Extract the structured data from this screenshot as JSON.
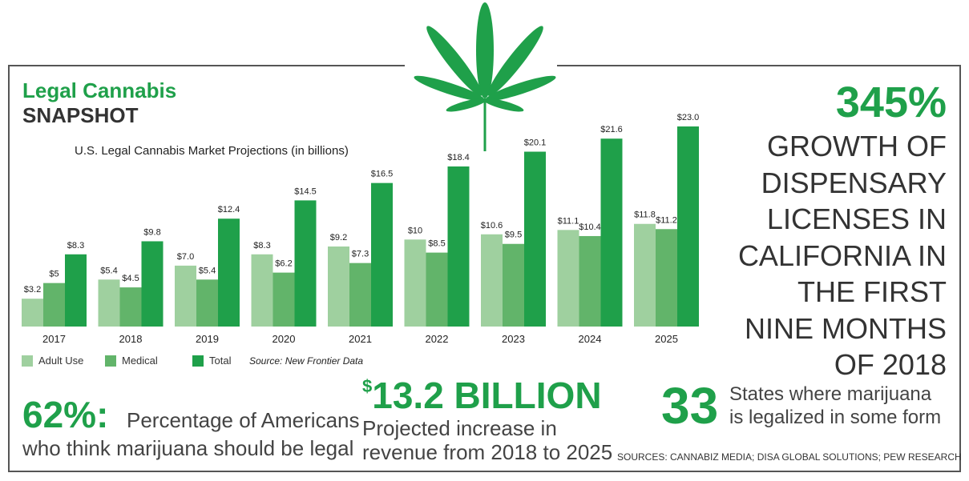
{
  "header": {
    "title_line1": "Legal Cannabis",
    "title_line2": "SNAPSHOT"
  },
  "colors": {
    "adult_use": "#9fd09f",
    "medical": "#62b46a",
    "total": "#1fa04a",
    "accent": "#1fa04a"
  },
  "icons": {
    "leaf": "cannabis-leaf-icon"
  },
  "chart_data": {
    "type": "bar",
    "title": "U.S. Legal Cannabis Market Projections (in billions)",
    "categories": [
      "2017",
      "2018",
      "2019",
      "2020",
      "2021",
      "2022",
      "2023",
      "2024",
      "2025"
    ],
    "series": [
      {
        "name": "Adult Use",
        "values": [
          3.2,
          5.4,
          7.0,
          8.3,
          9.2,
          10,
          10.6,
          11.1,
          11.8
        ],
        "labels": [
          "$3.2",
          "$5.4",
          "$7.0",
          "$8.3",
          "$9.2",
          "$10",
          "$10.6",
          "$11.1",
          "$11.8"
        ]
      },
      {
        "name": "Medical",
        "values": [
          5,
          4.5,
          5.4,
          6.2,
          7.3,
          8.5,
          9.5,
          10.4,
          11.2
        ],
        "labels": [
          "$5",
          "$4.5",
          "$5.4",
          "$6.2",
          "$7.3",
          "$8.5",
          "$9.5",
          "$10.4",
          "$11.2"
        ]
      },
      {
        "name": "Total",
        "values": [
          8.3,
          9.8,
          12.4,
          14.5,
          16.5,
          18.4,
          20.1,
          21.6,
          23.0
        ],
        "labels": [
          "$8.3",
          "$9.8",
          "$12.4",
          "$14.5",
          "$16.5",
          "$18.4",
          "$20.1",
          "$21.6",
          "$23.0"
        ]
      }
    ],
    "ylim": [
      0,
      23.0
    ],
    "legend_position": "bottom-left",
    "grid": false,
    "source_note": "Source: New Frontier Data"
  },
  "stats": {
    "growth": {
      "value": "345%",
      "text": "GROWTH OF DISPENSARY LICENSES IN CALIFORNIA IN THE FIRST NINE MONTHS OF 2018"
    },
    "americans": {
      "value": "62%:",
      "text_line1": "Percentage of Americans",
      "text_line2": "who think marijuana should be legal"
    },
    "revenue": {
      "currency": "$",
      "value": "13.2 BILLION",
      "text_line1": "Projected increase in",
      "text_line2": "revenue from 2018 to 2025"
    },
    "states": {
      "value": "33",
      "text_line1": "States where marijuana",
      "text_line2": "is legalized in some form"
    }
  },
  "sources": "SOURCES: CANNABIZ MEDIA; DISA GLOBAL SOLUTIONS; PEW RESEARCH"
}
